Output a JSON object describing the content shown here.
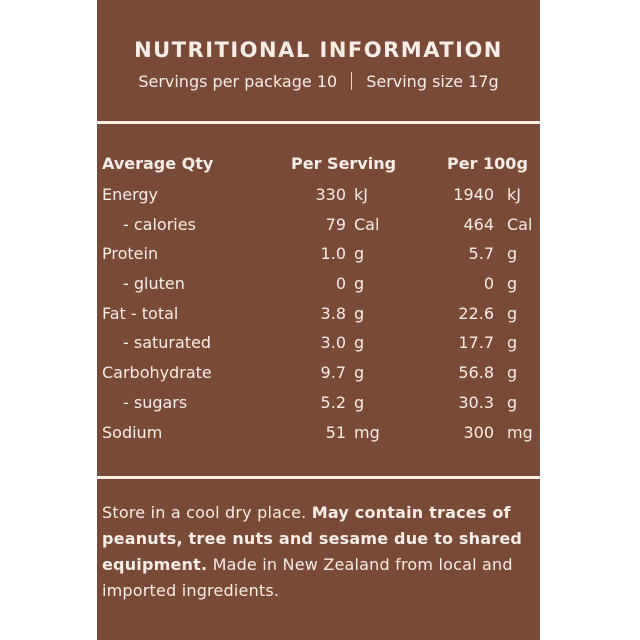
{
  "label": {
    "title": "NUTRITIONAL INFORMATION",
    "servings_per_package": "Servings per package 10",
    "serving_size": "Serving size 17g"
  },
  "table": {
    "headers": {
      "quantity": "Average Qty",
      "per_serving": "Per Serving",
      "per_100g": "Per 100g"
    },
    "rows": [
      {
        "label": "Energy",
        "ps": "330",
        "ps_unit": "kJ",
        "p100": "1940",
        "p100_unit": "kJ"
      },
      {
        "label": "- calories",
        "ps": "79",
        "ps_unit": "Cal",
        "p100": "464",
        "p100_unit": "Cal"
      },
      {
        "label": "Protein",
        "ps": "1.0",
        "ps_unit": "g",
        "p100": "5.7",
        "p100_unit": "g"
      },
      {
        "label": "- gluten",
        "ps": "0",
        "ps_unit": "g",
        "p100": "0",
        "p100_unit": "g"
      },
      {
        "label": "Fat - total",
        "ps": "3.8",
        "ps_unit": "g",
        "p100": "22.6",
        "p100_unit": "g"
      },
      {
        "label": "- saturated",
        "ps": "3.0",
        "ps_unit": "g",
        "p100": "17.7",
        "p100_unit": "g"
      },
      {
        "label": "Carbohydrate",
        "ps": "9.7",
        "ps_unit": "g",
        "p100": "56.8",
        "p100_unit": "g"
      },
      {
        "label": "- sugars",
        "ps": "5.2",
        "ps_unit": "g",
        "p100": "30.3",
        "p100_unit": "g"
      },
      {
        "label": "Sodium",
        "ps": "51",
        "ps_unit": "mg",
        "p100": "300",
        "p100_unit": "mg"
      }
    ]
  },
  "storage": {
    "part1": "Store in a cool dry place. ",
    "part2_bold": "May contain traces of peanuts, tree nuts and sesame due to shared equipment.",
    "part3": " Made in New Zealand from local and imported ingredients."
  },
  "colors": {
    "background": "#7a4a38",
    "text": "#f6ede6"
  }
}
